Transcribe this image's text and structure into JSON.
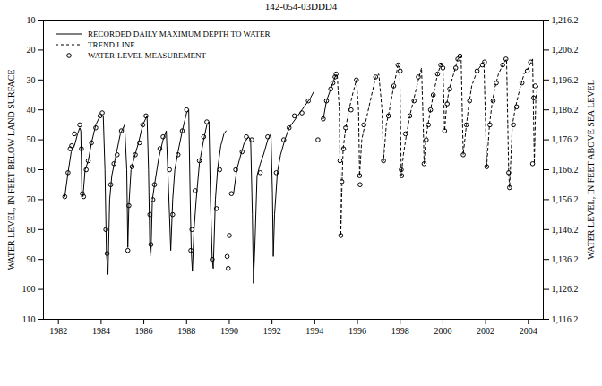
{
  "chart_data": {
    "type": "line",
    "title": "142-054-03DDD4",
    "y_label": "WATER LEVEL, IN FEET BELOW LAND SURFACE",
    "y2_label": "WATER LEVEL, IN FEET ABOVE SEA LEVEL",
    "xlim": [
      1981.3,
      2004.7
    ],
    "xticks": [
      1982,
      1984,
      1986,
      1988,
      1990,
      1992,
      1994,
      1996,
      1998,
      2000,
      2002,
      2004
    ],
    "ylim": [
      10,
      110
    ],
    "yticks": [
      10,
      20,
      30,
      40,
      50,
      60,
      70,
      80,
      90,
      100,
      110
    ],
    "y2lim": [
      1216.2,
      1116.2
    ],
    "y2ticks": [
      {
        "value": 1216.2,
        "label": "1,216.2"
      },
      {
        "value": 1206.2,
        "label": "1,206.2"
      },
      {
        "value": 1196.2,
        "label": "1,196.2"
      },
      {
        "value": 1186.2,
        "label": "1,186.2"
      },
      {
        "value": 1176.2,
        "label": "1,176.2"
      },
      {
        "value": 1166.2,
        "label": "1,166.2"
      },
      {
        "value": 1156.2,
        "label": "1,156.2"
      },
      {
        "value": 1146.2,
        "label": "1,146.2"
      },
      {
        "value": 1136.2,
        "label": "1,136.2"
      },
      {
        "value": 1126.2,
        "label": "1,126.2"
      },
      {
        "value": 1116.2,
        "label": "1,116.2"
      }
    ],
    "grid": false,
    "legend": "upper left",
    "series": [
      {
        "name": "RECORDED DAILY MAXIMUM DEPTH TO WATER",
        "type": "line",
        "line_style": "solid",
        "color": "#000000",
        "x": [
          1982.3,
          1982.45,
          1982.6,
          1982.75,
          1982.9,
          1983.0,
          1983.05,
          1983.1,
          1983.15,
          1983.25,
          1983.4,
          1983.55,
          1983.75,
          1983.95,
          1984.1,
          1984.18,
          1984.25,
          1984.32,
          1984.4,
          1984.5,
          1984.7,
          1984.9,
          1985.1,
          1985.2,
          1985.25,
          1985.3,
          1985.4,
          1985.55,
          1985.75,
          1985.95,
          1986.15,
          1986.22,
          1986.28,
          1986.33,
          1986.4,
          1986.5,
          1986.7,
          1986.9,
          1987.05,
          1987.12,
          1987.2,
          1987.26,
          1987.35,
          1987.45,
          1987.6,
          1987.8,
          1988.0,
          1988.1,
          1988.17,
          1988.22,
          1988.27,
          1988.35,
          1988.45,
          1988.6,
          1988.8,
          1988.95,
          1989.05,
          1989.12,
          1989.2,
          1989.25,
          1989.35,
          1989.45,
          1989.6,
          1989.75,
          1989.85,
          1989.9,
          1990.2,
          1990.35,
          1990.5,
          1990.7,
          1990.9,
          1991.0,
          1991.08,
          1991.13,
          1991.2,
          1991.3,
          1991.45,
          1991.6,
          1991.8,
          1991.95,
          1992.02,
          1992.06,
          1992.12,
          1992.25,
          1992.4,
          1992.6,
          1992.8,
          1993.0,
          1993.2,
          1993.4,
          1993.6,
          1993.8,
          1993.95,
          1994.1,
          1994.4,
          1994.55,
          1994.7,
          1994.85,
          1994.95
        ],
        "values": [
          69,
          61,
          54,
          52,
          48,
          46,
          47,
          68,
          69,
          60,
          57,
          51,
          45,
          42,
          42,
          60,
          88,
          95,
          70,
          62,
          55,
          48,
          45,
          60,
          86,
          72,
          60,
          56,
          51,
          45,
          42,
          60,
          85,
          89,
          70,
          65,
          56,
          50,
          47,
          60,
          75,
          87,
          70,
          60,
          54,
          47,
          41,
          40,
          70,
          87,
          94,
          80,
          70,
          58,
          50,
          45,
          44,
          70,
          90,
          93,
          70,
          60,
          52,
          48,
          47,
          null,
          68,
          60,
          56,
          51,
          49,
          50,
          75,
          98,
          85,
          62,
          58,
          55,
          50,
          48,
          68,
          89,
          75,
          61,
          55,
          50,
          46,
          44,
          42,
          40,
          38,
          36,
          34,
          null,
          43,
          37,
          34,
          31,
          29
        ]
      },
      {
        "name": "TREND LINE",
        "type": "line",
        "line_style": "dashed",
        "color": "#000000",
        "x": [
          1994.95,
          1995.05,
          1995.15,
          1995.22,
          1995.28,
          1995.33,
          1995.45,
          1995.6,
          1995.8,
          1995.95,
          1996.05,
          1996.1,
          1996.2,
          1996.35,
          1996.6,
          1996.85,
          1997.0,
          1997.15,
          1997.22,
          1997.35,
          1997.5,
          1997.7,
          1997.9,
          1997.98,
          1998.05,
          1998.15,
          1998.3,
          1998.45,
          1998.65,
          1998.85,
          1999.0,
          1999.08,
          1999.12,
          1999.2,
          1999.3,
          1999.42,
          1999.55,
          1999.75,
          1999.9,
          2000.0,
          2000.08,
          2000.18,
          2000.3,
          2000.5,
          2000.7,
          2000.85,
          2000.95,
          2001.1,
          2001.22,
          2001.35,
          2001.6,
          2001.8,
          2001.92,
          2002.05,
          2002.18,
          2002.3,
          2002.42,
          2002.6,
          2002.8,
          2002.98,
          2003.08,
          2003.12,
          2003.25,
          2003.4,
          2003.6,
          2003.8,
          2004.0,
          2004.2,
          2004.28,
          2004.35,
          2004.45
        ],
        "values": [
          29,
          28,
          40,
          82,
          64,
          53,
          46,
          40,
          34,
          30,
          40,
          62,
          50,
          45,
          37,
          29,
          28,
          40,
          57,
          45,
          40,
          32,
          25,
          26,
          62,
          55,
          48,
          42,
          36,
          30,
          26,
          45,
          58,
          50,
          45,
          40,
          35,
          28,
          25,
          25,
          47,
          38,
          33,
          28,
          23,
          22,
          55,
          45,
          38,
          32,
          27,
          25,
          24,
          59,
          45,
          38,
          33,
          28,
          25,
          23,
          61,
          66,
          45,
          39,
          33,
          28,
          26,
          23,
          58,
          36,
          32
        ]
      },
      {
        "name": "WATER-LEVEL MEASUREMENT",
        "type": "scatter",
        "marker": "circle",
        "color": "#000000",
        "x": [
          1982.3,
          1982.45,
          1982.55,
          1982.62,
          1982.75,
          1983.0,
          1983.08,
          1983.12,
          1983.18,
          1983.3,
          1983.4,
          1983.55,
          1983.75,
          1983.95,
          1984.05,
          1984.22,
          1984.28,
          1984.45,
          1984.6,
          1984.75,
          1984.95,
          1985.25,
          1985.3,
          1985.45,
          1985.6,
          1985.8,
          1985.95,
          1986.1,
          1986.28,
          1986.33,
          1986.42,
          1986.5,
          1986.75,
          1986.9,
          1987.2,
          1987.35,
          1987.6,
          1987.8,
          1988.0,
          1988.2,
          1988.25,
          1988.4,
          1988.6,
          1988.8,
          1988.95,
          1989.2,
          1989.4,
          1989.55,
          1989.9,
          1989.95,
          1990.0,
          1990.1,
          1990.3,
          1990.6,
          1990.8,
          1991.05,
          1991.45,
          1991.8,
          1992.2,
          1992.55,
          1992.8,
          1993.05,
          1993.4,
          1993.7,
          1994.15,
          1994.4,
          1994.55,
          1994.75,
          1994.85,
          1994.95,
          1995.0,
          1995.18,
          1995.22,
          1995.27,
          1995.35,
          1995.45,
          1995.7,
          1995.95,
          1996.1,
          1996.12,
          1996.3,
          1996.85,
          1997.22,
          1997.45,
          1997.7,
          1997.9,
          1998.0,
          1998.05,
          1998.07,
          1998.25,
          1998.45,
          1998.65,
          1998.85,
          1999.12,
          1999.22,
          1999.32,
          1999.42,
          1999.55,
          1999.75,
          1999.9,
          2000.0,
          2000.08,
          2000.2,
          2000.32,
          2000.6,
          2000.7,
          2000.8,
          2000.95,
          2001.1,
          2001.25,
          2001.6,
          2001.85,
          2001.95,
          2002.05,
          2002.2,
          2002.35,
          2002.5,
          2002.8,
          2002.95,
          2003.08,
          2003.12,
          2003.3,
          2003.45,
          2003.7,
          2003.95,
          2004.1,
          2004.2,
          2004.25,
          2004.32
        ],
        "values": [
          69,
          61,
          53,
          52,
          48,
          45,
          53,
          68,
          69,
          60,
          57,
          51,
          46,
          42,
          41,
          80,
          88,
          65,
          58,
          55,
          47,
          87,
          72,
          59,
          55,
          51,
          45,
          42,
          75,
          85,
          70,
          65,
          53,
          49,
          60,
          75,
          55,
          47,
          40,
          87,
          80,
          67,
          57,
          49,
          44,
          90,
          73,
          60,
          89,
          93,
          82,
          68,
          60,
          54,
          49,
          50,
          61,
          49,
          61,
          50,
          46,
          42,
          41,
          37,
          50,
          43,
          37,
          33,
          31,
          29,
          28,
          57,
          82,
          64,
          53,
          46,
          40,
          30,
          62,
          65,
          45,
          29,
          57,
          42,
          32,
          25,
          27,
          60,
          62,
          48,
          42,
          37,
          29,
          58,
          50,
          45,
          40,
          35,
          28,
          25,
          26,
          47,
          38,
          33,
          26,
          23,
          22,
          55,
          45,
          37,
          27,
          25,
          24,
          59,
          45,
          37,
          31,
          25,
          23,
          61,
          66,
          45,
          39,
          31,
          27,
          24,
          58,
          36,
          32
        ]
      }
    ]
  }
}
